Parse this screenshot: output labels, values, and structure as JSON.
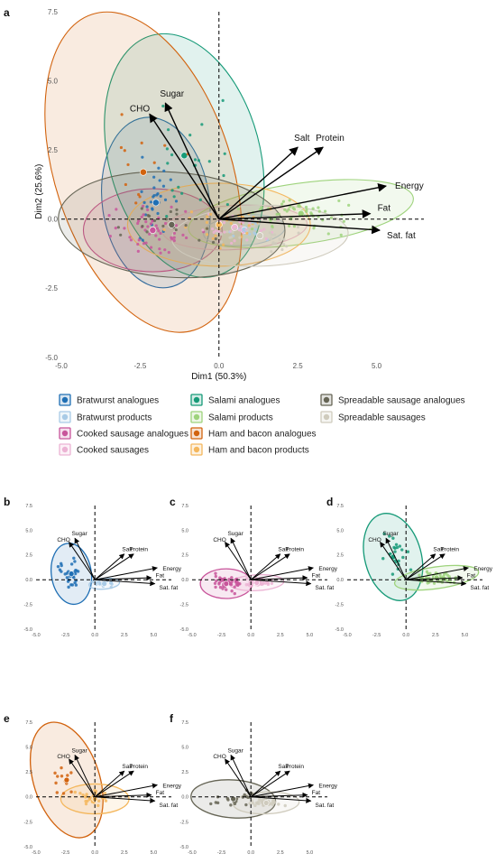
{
  "figure": {
    "panel_letters": [
      "a",
      "b",
      "c",
      "d",
      "e",
      "f"
    ]
  },
  "colors": {
    "Bratwurst analogues": "#1f6fb4",
    "Bratwurst products": "#a9cbe6",
    "Cooked sausage analogues": "#c8559b",
    "Cooked sausages": "#ecb3d4",
    "Salami analogues": "#169a78",
    "Salami products": "#9ed37c",
    "Ham and bacon analogues": "#d2630e",
    "Ham and bacon products": "#f4b75d",
    "Spreadable sausage analogues": "#666555",
    "Spreadable sausages": "#cfcbbd"
  },
  "legend": {
    "items": [
      "Bratwurst analogues",
      "Bratwurst products",
      "Cooked sausage analogues",
      "Cooked sausages",
      "Salami analogues",
      "Salami products",
      "Ham and bacon analogues",
      "Ham and bacon products",
      "Spreadable sausage analogues",
      "Spreadable sausages"
    ]
  },
  "chart_data": [
    {
      "panel": "a",
      "type": "scatter",
      "title": "",
      "xlabel": "Dim1 (50.3%)",
      "ylabel": "Dim2 (25.6%)",
      "xlim": [
        -5.0,
        6.5
      ],
      "ylim": [
        -5.0,
        7.5
      ],
      "xticks": [
        "-5.0",
        "-2.5",
        "0.0",
        "2.5",
        "5.0"
      ],
      "yticks": [
        "-5.0",
        "-2.5",
        "0.0",
        "2.5",
        "5.0",
        "7.5"
      ],
      "groups": [
        "Bratwurst analogues",
        "Bratwurst products",
        "Cooked sausage analogues",
        "Cooked sausages",
        "Salami analogues",
        "Salami products",
        "Ham and bacon analogues",
        "Ham and bacon products",
        "Spreadable sausage analogues",
        "Spreadable sausages"
      ],
      "loadings": [
        {
          "name": "Sugar",
          "x": -1.7,
          "y": 4.2
        },
        {
          "name": "CHO",
          "x": -2.2,
          "y": 3.8
        },
        {
          "name": "Salt",
          "x": 2.5,
          "y": 2.6
        },
        {
          "name": "Protein",
          "x": 3.3,
          "y": 2.6
        },
        {
          "name": "Energy",
          "x": 5.3,
          "y": 1.2
        },
        {
          "name": "Fat",
          "x": 4.8,
          "y": 0.2
        },
        {
          "name": "Sat. fat",
          "x": 5.1,
          "y": -0.4
        }
      ]
    },
    {
      "panel": "b",
      "type": "scatter",
      "xlim": [
        -5,
        6.5
      ],
      "ylim": [
        -5,
        7.5
      ],
      "xticks": [
        "-5.0",
        "-2.5",
        "0.0",
        "2.5",
        "5.0"
      ],
      "yticks": [
        "-5.0",
        "-2.5",
        "0.0",
        "2.5",
        "5.0",
        "7.5"
      ],
      "groups": [
        "Bratwurst analogues",
        "Bratwurst products"
      ],
      "loadings": [
        "Sugar",
        "CHO",
        "Salt",
        "Protein",
        "Energy",
        "Fat",
        "Sat. fat"
      ]
    },
    {
      "panel": "c",
      "type": "scatter",
      "xlim": [
        -5,
        6.5
      ],
      "ylim": [
        -5,
        7.5
      ],
      "xticks": [
        "-5.0",
        "-2.5",
        "0.0",
        "2.5",
        "5.0"
      ],
      "yticks": [
        "-5.0",
        "-2.5",
        "0.0",
        "2.5",
        "5.0",
        "7.5"
      ],
      "groups": [
        "Cooked sausage analogues",
        "Cooked sausages"
      ],
      "loadings": [
        "Sugar",
        "CHO",
        "Salt",
        "Protein",
        "Energy",
        "Fat",
        "Sat. fat"
      ]
    },
    {
      "panel": "d",
      "type": "scatter",
      "xlim": [
        -5,
        6.5
      ],
      "ylim": [
        -5,
        7.5
      ],
      "xticks": [
        "-5.0",
        "-2.5",
        "0.0",
        "2.5",
        "5.0"
      ],
      "yticks": [
        "-5.0",
        "-2.5",
        "0.0",
        "2.5",
        "5.0",
        "7.5"
      ],
      "groups": [
        "Salami analogues",
        "Salami products"
      ],
      "loadings": [
        "Sugar",
        "CHO",
        "Salt",
        "Protein",
        "Energy",
        "Fat",
        "Sat. fat"
      ]
    },
    {
      "panel": "e",
      "type": "scatter",
      "xlim": [
        -5,
        6.5
      ],
      "ylim": [
        -5,
        7.5
      ],
      "xticks": [
        "-5.0",
        "-2.5",
        "0.0",
        "2.5",
        "5.0"
      ],
      "yticks": [
        "-5.0",
        "-2.5",
        "0.0",
        "2.5",
        "5.0",
        "7.5"
      ],
      "groups": [
        "Ham and bacon analogues",
        "Ham and bacon products"
      ],
      "loadings": [
        "Sugar",
        "CHO",
        "Salt",
        "Protein",
        "Energy",
        "Fat",
        "Sat. fat"
      ]
    },
    {
      "panel": "f",
      "type": "scatter",
      "xlim": [
        -5,
        6.5
      ],
      "ylim": [
        -5,
        7.5
      ],
      "xticks": [
        "-5.0",
        "-2.5",
        "0.0",
        "2.5",
        "5.0"
      ],
      "yticks": [
        "-5.0",
        "-2.5",
        "0.0",
        "2.5",
        "5.0",
        "7.5"
      ],
      "groups": [
        "Spreadable sausage analogues",
        "Spreadable sausages"
      ],
      "loadings": [
        "Sugar",
        "CHO",
        "Salt",
        "Protein",
        "Energy",
        "Fat",
        "Sat. fat"
      ]
    }
  ]
}
